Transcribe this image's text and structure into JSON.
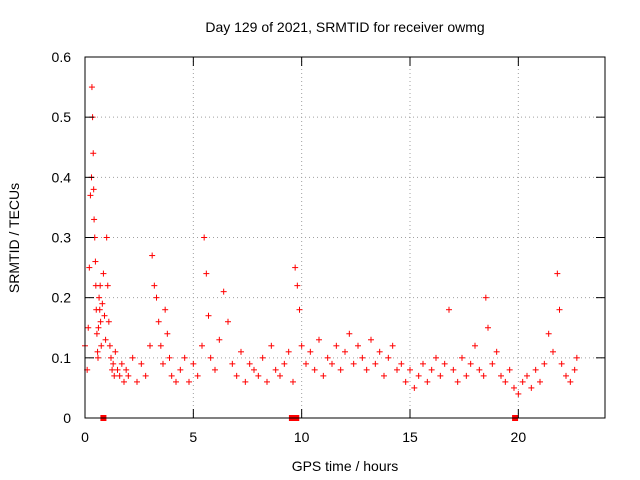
{
  "chart_data": {
    "type": "scatter",
    "title": "Day 129 of 2021, SRMTID for receiver owmg",
    "xlabel": "GPS time / hours",
    "ylabel": "SRMTID / TECUs",
    "xlim": [
      0,
      24
    ],
    "ylim": [
      0,
      0.6
    ],
    "xticks": [
      0,
      5,
      10,
      15,
      20
    ],
    "xtick_labels": [
      "0",
      "5",
      "10",
      "15",
      "20"
    ],
    "yticks": [
      0,
      0.1,
      0.2,
      0.3,
      0.4,
      0.5,
      0.6
    ],
    "ytick_labels": [
      "0",
      "0.1",
      "0.2",
      "0.3",
      "0.4",
      "0.5",
      "0.6"
    ],
    "grid": true,
    "marker": "plus",
    "color": "#ff0000",
    "series": [
      {
        "name": "SRMTID",
        "x": [
          0.0,
          0.1,
          0.15,
          0.2,
          0.25,
          0.3,
          0.32,
          0.35,
          0.38,
          0.4,
          0.42,
          0.45,
          0.48,
          0.5,
          0.52,
          0.55,
          0.58,
          0.6,
          0.62,
          0.65,
          0.68,
          0.7,
          0.72,
          0.75,
          0.8,
          0.85,
          0.9,
          0.95,
          1.0,
          1.05,
          1.1,
          1.15,
          1.2,
          1.25,
          1.3,
          1.35,
          1.4,
          1.5,
          1.6,
          1.7,
          1.8,
          1.9,
          2.0,
          2.2,
          2.4,
          2.6,
          2.8,
          3.0,
          3.1,
          3.2,
          3.3,
          3.4,
          3.5,
          3.6,
          3.7,
          3.8,
          3.9,
          4.0,
          4.2,
          4.4,
          4.6,
          4.8,
          5.0,
          5.2,
          5.4,
          5.5,
          5.6,
          5.7,
          5.8,
          6.0,
          6.2,
          6.4,
          6.6,
          6.8,
          7.0,
          7.2,
          7.4,
          7.6,
          7.8,
          8.0,
          8.2,
          8.4,
          8.6,
          8.8,
          9.0,
          9.2,
          9.4,
          9.6,
          9.7,
          9.8,
          9.9,
          10.0,
          10.2,
          10.4,
          10.6,
          10.8,
          11.0,
          11.2,
          11.4,
          11.6,
          11.8,
          12.0,
          12.2,
          12.4,
          12.6,
          12.8,
          13.0,
          13.2,
          13.4,
          13.6,
          13.8,
          14.0,
          14.2,
          14.4,
          14.6,
          14.8,
          15.0,
          15.2,
          15.4,
          15.6,
          15.8,
          16.0,
          16.2,
          16.4,
          16.6,
          16.8,
          17.0,
          17.2,
          17.4,
          17.6,
          17.8,
          18.0,
          18.2,
          18.4,
          18.5,
          18.6,
          18.8,
          19.0,
          19.2,
          19.4,
          19.6,
          19.8,
          20.0,
          20.2,
          20.4,
          20.6,
          20.8,
          21.0,
          21.2,
          21.4,
          21.6,
          21.8,
          21.9,
          22.0,
          22.2,
          22.4,
          22.6,
          22.7
        ],
        "y": [
          0.12,
          0.08,
          0.15,
          0.25,
          0.37,
          0.4,
          0.55,
          0.5,
          0.44,
          0.38,
          0.33,
          0.3,
          0.26,
          0.22,
          0.18,
          0.14,
          0.11,
          0.1,
          0.15,
          0.2,
          0.18,
          0.22,
          0.16,
          0.12,
          0.19,
          0.24,
          0.17,
          0.13,
          0.3,
          0.22,
          0.16,
          0.12,
          0.1,
          0.08,
          0.09,
          0.07,
          0.11,
          0.08,
          0.07,
          0.09,
          0.06,
          0.08,
          0.07,
          0.1,
          0.06,
          0.09,
          0.07,
          0.12,
          0.27,
          0.22,
          0.2,
          0.16,
          0.12,
          0.09,
          0.18,
          0.14,
          0.1,
          0.07,
          0.06,
          0.08,
          0.1,
          0.06,
          0.09,
          0.07,
          0.12,
          0.3,
          0.24,
          0.17,
          0.1,
          0.08,
          0.13,
          0.21,
          0.16,
          0.09,
          0.07,
          0.11,
          0.06,
          0.09,
          0.08,
          0.07,
          0.1,
          0.06,
          0.12,
          0.08,
          0.07,
          0.09,
          0.11,
          0.06,
          0.25,
          0.22,
          0.18,
          0.12,
          0.09,
          0.11,
          0.08,
          0.13,
          0.07,
          0.1,
          0.09,
          0.12,
          0.08,
          0.11,
          0.14,
          0.09,
          0.12,
          0.1,
          0.08,
          0.13,
          0.09,
          0.11,
          0.07,
          0.1,
          0.12,
          0.08,
          0.09,
          0.06,
          0.08,
          0.05,
          0.07,
          0.09,
          0.06,
          0.08,
          0.1,
          0.07,
          0.09,
          0.18,
          0.08,
          0.06,
          0.1,
          0.07,
          0.09,
          0.12,
          0.08,
          0.07,
          0.2,
          0.15,
          0.09,
          0.11,
          0.07,
          0.06,
          0.08,
          0.05,
          0.04,
          0.06,
          0.07,
          0.05,
          0.08,
          0.06,
          0.09,
          0.14,
          0.11,
          0.24,
          0.18,
          0.09,
          0.07,
          0.06,
          0.08,
          0.1
        ]
      }
    ],
    "axis_markers": [
      {
        "x": 0.85,
        "y": 0
      },
      {
        "x": 9.55,
        "y": 0
      },
      {
        "x": 9.75,
        "y": 0
      },
      {
        "x": 19.85,
        "y": 0
      }
    ]
  }
}
